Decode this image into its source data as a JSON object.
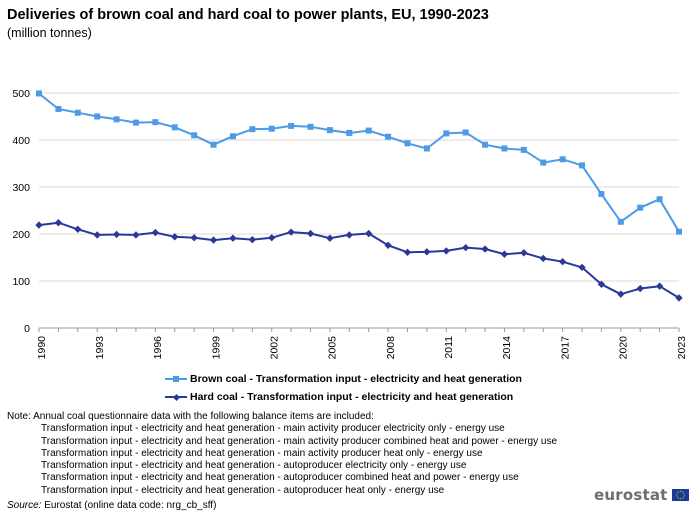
{
  "header": {
    "title": "Deliveries of brown coal and hard coal to power plants, EU, 1990-2023",
    "subtitle": "(million tonnes)"
  },
  "chart_data": {
    "type": "line",
    "x": [
      1990,
      1991,
      1992,
      1993,
      1994,
      1995,
      1996,
      1997,
      1998,
      1999,
      2000,
      2001,
      2002,
      2003,
      2004,
      2005,
      2006,
      2007,
      2008,
      2009,
      2010,
      2011,
      2012,
      2013,
      2014,
      2015,
      2016,
      2017,
      2018,
      2019,
      2020,
      2021,
      2022,
      2023
    ],
    "xticks": [
      "1990",
      "1993",
      "1996",
      "1999",
      "2002",
      "2005",
      "2008",
      "2011",
      "2014",
      "2017",
      "2020",
      "2023"
    ],
    "yticks": [
      "0",
      "100",
      "200",
      "300",
      "400",
      "500"
    ],
    "ylim": [
      0,
      500
    ],
    "grid": "horizontal",
    "legend_position": "bottom",
    "series": [
      {
        "name": "Brown coal - Transformation input - electricity and heat generation",
        "color": "#4d9be5",
        "marker": "square",
        "values": [
          499,
          466,
          458,
          450,
          444,
          437,
          438,
          427,
          410,
          390,
          408,
          423,
          424,
          430,
          428,
          421,
          415,
          420,
          407,
          393,
          382,
          414,
          416,
          390,
          382,
          379,
          352,
          359,
          346,
          285,
          226,
          256,
          274,
          205
        ]
      },
      {
        "name": "Hard coal - Transformation input - electricity and heat generation",
        "color": "#28399a",
        "marker": "diamond",
        "values": [
          219,
          224,
          210,
          198,
          199,
          198,
          203,
          194,
          192,
          187,
          191,
          188,
          192,
          204,
          201,
          191,
          198,
          201,
          176,
          161,
          162,
          164,
          171,
          168,
          157,
          160,
          148,
          141,
          129,
          93,
          72,
          84,
          89,
          64
        ]
      }
    ]
  },
  "note": {
    "heading": "Note: Annual coal questionnaire data with the following balance items are included:",
    "items": [
      "Transformation input - electricity and heat generation - main activity producer electricity only - energy use",
      "Transformation input - electricity and heat generation - main activity producer combined heat and power - energy use",
      "Transformation input - electricity and heat generation - main activity producer heat only - energy use",
      "Transformation input - electricity and heat generation - autoproducer electricity only - energy use",
      "Transformation input - electricity and heat generation - autoproducer combined heat and power - energy use",
      "Transformation input - electricity and heat generation - autoproducer heat only - energy use"
    ]
  },
  "source": {
    "label": "Source:",
    "text": "Eurostat (online data code: nrg_cb_sff)"
  },
  "logo": {
    "text": "eurostat",
    "flag_color": "#173b99",
    "star_color": "#ffcc00"
  }
}
